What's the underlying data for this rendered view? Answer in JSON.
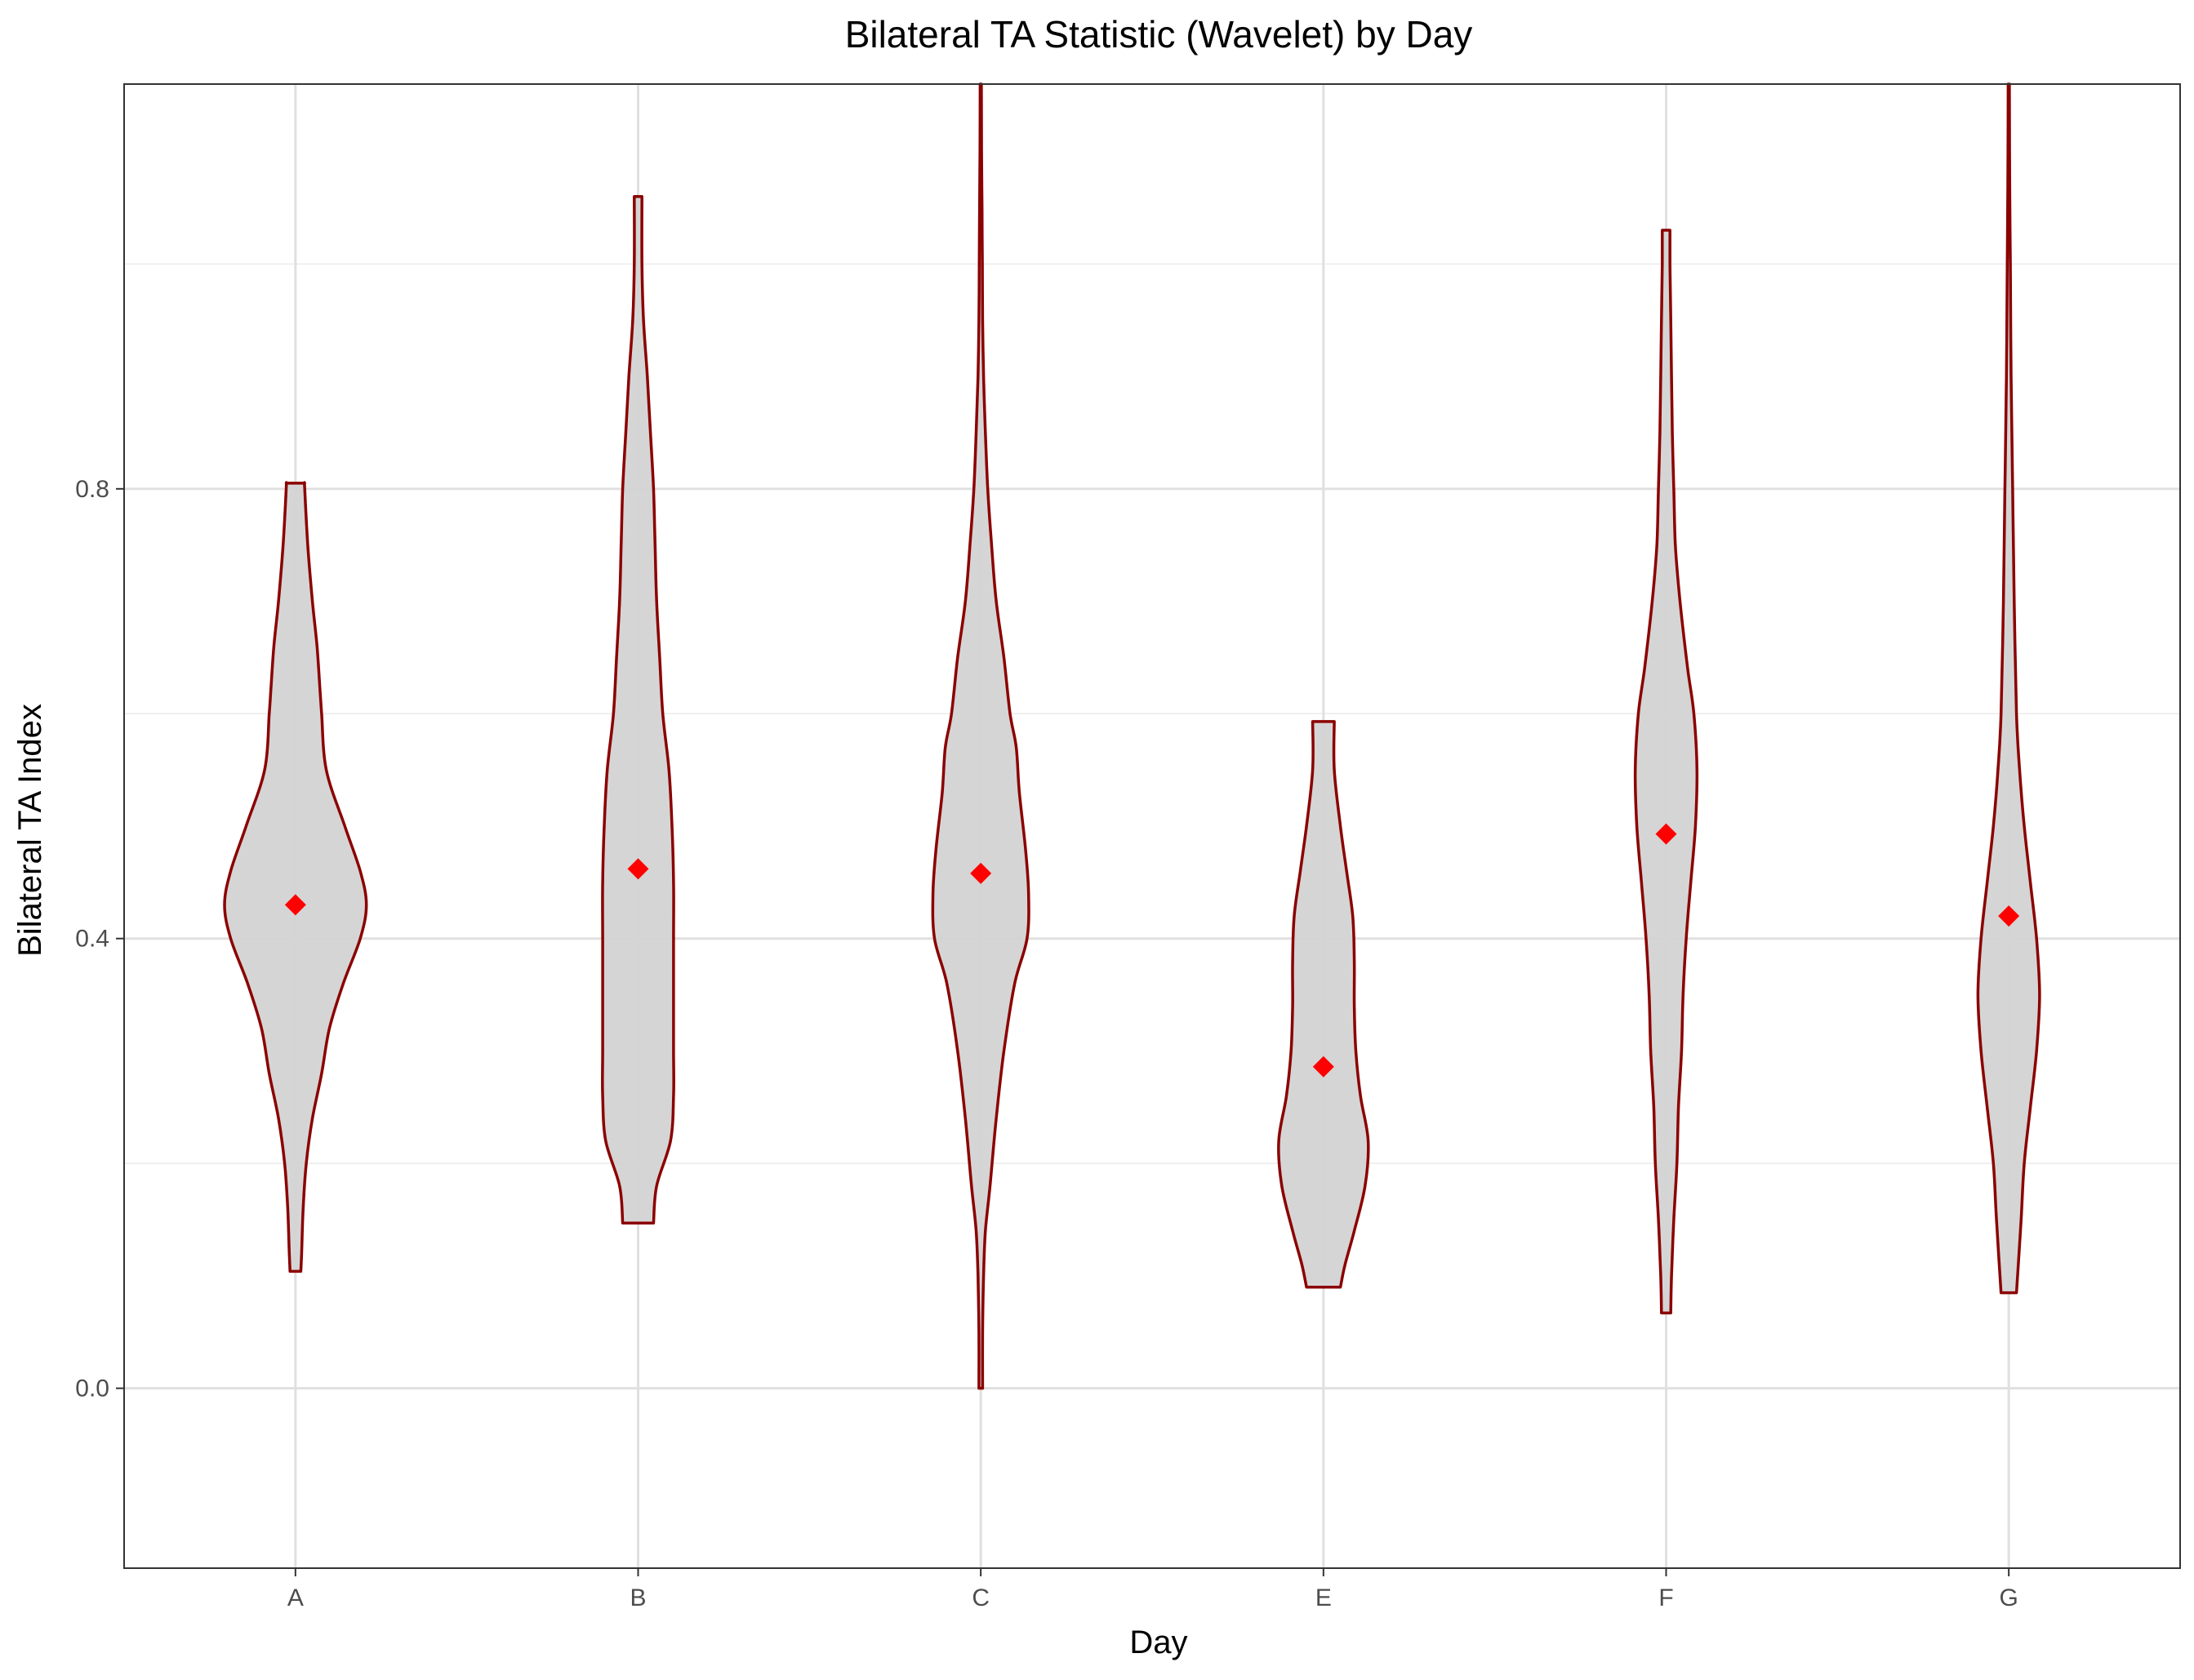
{
  "chart_data": {
    "type": "violin",
    "title": "Bilateral TA Statistic (Wavelet) by Day",
    "xlabel": "Day",
    "ylabel": "Bilateral TA Index",
    "categories": [
      "A",
      "B",
      "C",
      "E",
      "F",
      "G"
    ],
    "ylim": [
      -0.16,
      1.16
    ],
    "yticks": [
      0.0,
      0.4,
      0.8
    ],
    "grid": true,
    "violin_fill": "#d3d3d3",
    "violin_outline": "#8b0000",
    "mean_marker_color": "#ff0000",
    "mean_marker_shape": "diamond",
    "means": [
      0.43,
      0.462,
      0.458,
      0.286,
      0.493,
      0.42
    ],
    "violins": [
      {
        "category": "A",
        "min": 0.104,
        "max": 0.805,
        "profile": [
          [
            0.104,
            0.035
          ],
          [
            0.12,
            0.04
          ],
          [
            0.16,
            0.05
          ],
          [
            0.2,
            0.07
          ],
          [
            0.24,
            0.11
          ],
          [
            0.28,
            0.17
          ],
          [
            0.32,
            0.22
          ],
          [
            0.36,
            0.31
          ],
          [
            0.4,
            0.42
          ],
          [
            0.43,
            0.46
          ],
          [
            0.46,
            0.42
          ],
          [
            0.5,
            0.32
          ],
          [
            0.55,
            0.2
          ],
          [
            0.6,
            0.17
          ],
          [
            0.62,
            0.16
          ],
          [
            0.66,
            0.14
          ],
          [
            0.7,
            0.11
          ],
          [
            0.75,
            0.08
          ],
          [
            0.8,
            0.06
          ],
          [
            0.805,
            0.06
          ]
        ]
      },
      {
        "category": "B",
        "min": 0.147,
        "max": 1.06,
        "profile": [
          [
            0.147,
            0.1
          ],
          [
            0.18,
            0.12
          ],
          [
            0.22,
            0.21
          ],
          [
            0.26,
            0.23
          ],
          [
            0.3,
            0.23
          ],
          [
            0.35,
            0.23
          ],
          [
            0.4,
            0.23
          ],
          [
            0.45,
            0.23
          ],
          [
            0.5,
            0.22
          ],
          [
            0.55,
            0.2
          ],
          [
            0.6,
            0.16
          ],
          [
            0.65,
            0.14
          ],
          [
            0.7,
            0.12
          ],
          [
            0.75,
            0.11
          ],
          [
            0.8,
            0.1
          ],
          [
            0.85,
            0.08
          ],
          [
            0.9,
            0.06
          ],
          [
            0.95,
            0.035
          ],
          [
            1.0,
            0.025
          ],
          [
            1.06,
            0.025
          ]
        ]
      },
      {
        "category": "C",
        "min": 0.0,
        "max": 1.16,
        "profile": [
          [
            0.0,
            0.012
          ],
          [
            0.05,
            0.012
          ],
          [
            0.1,
            0.018
          ],
          [
            0.14,
            0.03
          ],
          [
            0.18,
            0.06
          ],
          [
            0.24,
            0.1
          ],
          [
            0.3,
            0.15
          ],
          [
            0.36,
            0.22
          ],
          [
            0.4,
            0.3
          ],
          [
            0.44,
            0.31
          ],
          [
            0.48,
            0.29
          ],
          [
            0.53,
            0.25
          ],
          [
            0.57,
            0.23
          ],
          [
            0.6,
            0.19
          ],
          [
            0.65,
            0.15
          ],
          [
            0.7,
            0.1
          ],
          [
            0.75,
            0.07
          ],
          [
            0.8,
            0.045
          ],
          [
            0.85,
            0.03
          ],
          [
            0.9,
            0.018
          ],
          [
            0.95,
            0.012
          ],
          [
            1.0,
            0.01
          ],
          [
            1.05,
            0.008
          ],
          [
            1.1,
            0.005
          ],
          [
            1.16,
            0.004
          ]
        ]
      },
      {
        "category": "E",
        "min": 0.09,
        "max": 0.593,
        "profile": [
          [
            0.09,
            0.11
          ],
          [
            0.11,
            0.14
          ],
          [
            0.14,
            0.2
          ],
          [
            0.18,
            0.27
          ],
          [
            0.22,
            0.29
          ],
          [
            0.26,
            0.24
          ],
          [
            0.3,
            0.21
          ],
          [
            0.34,
            0.2
          ],
          [
            0.38,
            0.2
          ],
          [
            0.42,
            0.19
          ],
          [
            0.46,
            0.15
          ],
          [
            0.5,
            0.11
          ],
          [
            0.55,
            0.07
          ],
          [
            0.593,
            0.07
          ]
        ]
      },
      {
        "category": "F",
        "min": 0.067,
        "max": 1.03,
        "profile": [
          [
            0.067,
            0.03
          ],
          [
            0.1,
            0.035
          ],
          [
            0.15,
            0.05
          ],
          [
            0.2,
            0.07
          ],
          [
            0.25,
            0.08
          ],
          [
            0.3,
            0.1
          ],
          [
            0.35,
            0.11
          ],
          [
            0.4,
            0.13
          ],
          [
            0.45,
            0.16
          ],
          [
            0.5,
            0.19
          ],
          [
            0.55,
            0.2
          ],
          [
            0.6,
            0.18
          ],
          [
            0.64,
            0.14
          ],
          [
            0.7,
            0.09
          ],
          [
            0.75,
            0.06
          ],
          [
            0.8,
            0.05
          ],
          [
            0.85,
            0.04
          ],
          [
            0.9,
            0.035
          ],
          [
            0.95,
            0.03
          ],
          [
            1.0,
            0.025
          ],
          [
            1.03,
            0.025
          ]
        ]
      },
      {
        "category": "G",
        "min": 0.085,
        "max": 1.16,
        "profile": [
          [
            0.085,
            0.05
          ],
          [
            0.15,
            0.08
          ],
          [
            0.2,
            0.1
          ],
          [
            0.25,
            0.14
          ],
          [
            0.3,
            0.18
          ],
          [
            0.35,
            0.2
          ],
          [
            0.4,
            0.18
          ],
          [
            0.45,
            0.14
          ],
          [
            0.5,
            0.1
          ],
          [
            0.55,
            0.07
          ],
          [
            0.6,
            0.05
          ],
          [
            0.7,
            0.035
          ],
          [
            0.8,
            0.025
          ],
          [
            0.9,
            0.015
          ],
          [
            1.0,
            0.01
          ],
          [
            1.05,
            0.007
          ],
          [
            1.1,
            0.005
          ],
          [
            1.16,
            0.004
          ]
        ]
      }
    ]
  }
}
